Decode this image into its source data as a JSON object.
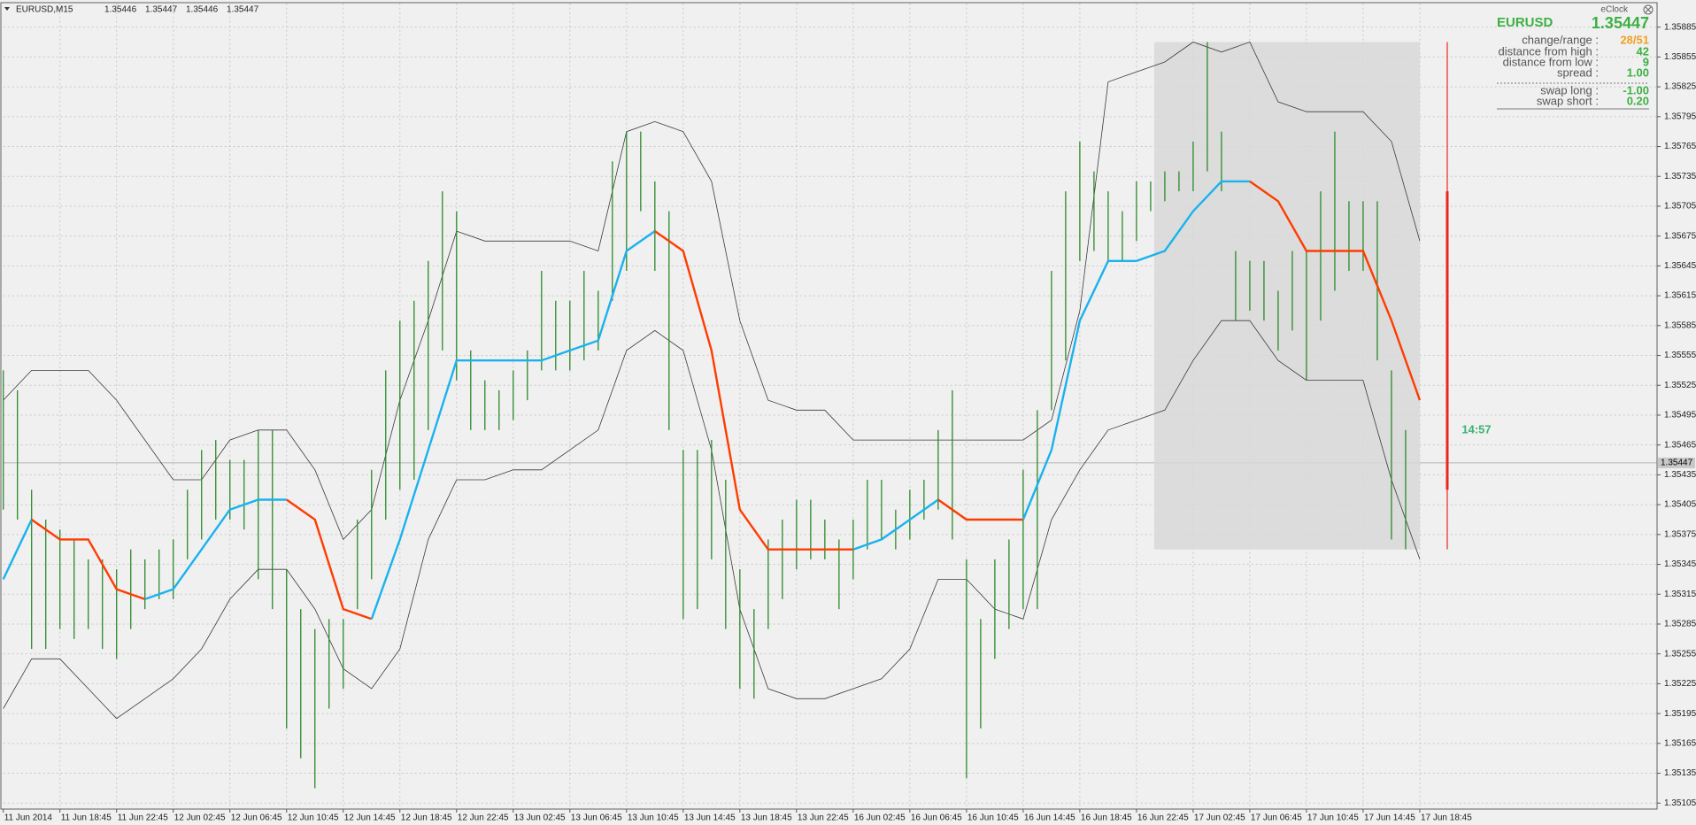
{
  "chart_data": {
    "type": "hilo",
    "header": {
      "symbol": "EURUSD,M15",
      "ohlc": [
        1.35446,
        1.35447,
        1.35446,
        1.35447
      ]
    },
    "indicator_name": "eClock",
    "timer": "14:57",
    "current_price": 1.35447,
    "info": {
      "symbol": "EURUSD",
      "rows": [
        {
          "label": "change/range :",
          "value": "28/51",
          "color": "#f0a020"
        },
        {
          "label": "distance from high :",
          "value": 42,
          "color": "#3cb043"
        },
        {
          "label": "distance from low :",
          "value": 9,
          "color": "#3cb043"
        },
        {
          "label": "spread :",
          "value": "1.00",
          "color": "#3cb043"
        },
        {
          "label": "swap long :",
          "value": "-1.00",
          "color": "#3cb043"
        },
        {
          "label": "swap short :",
          "value": "0.20",
          "color": "#3cb043"
        }
      ]
    },
    "xlim": [
      0,
      467
    ],
    "ylim": [
      1.35099,
      1.35909
    ],
    "grid": true,
    "yticks": [
      1.35885,
      1.35855,
      1.35825,
      1.35795,
      1.35765,
      1.35735,
      1.35705,
      1.35675,
      1.35645,
      1.35615,
      1.35585,
      1.35555,
      1.35525,
      1.35495,
      1.35465,
      1.35435,
      1.35405,
      1.35375,
      1.35345,
      1.35315,
      1.35285,
      1.35255,
      1.35225,
      1.35195,
      1.35165,
      1.35135,
      1.35105
    ],
    "xticks": [
      {
        "value": 0,
        "label": "11 Jun 2014"
      },
      {
        "value": 16,
        "label": "11 Jun 18:45"
      },
      {
        "value": 32,
        "label": "11 Jun 22:45"
      },
      {
        "value": 48,
        "label": "12 Jun 02:45"
      },
      {
        "value": 64,
        "label": "12 Jun 06:45"
      },
      {
        "value": 80,
        "label": "12 Jun 10:45"
      },
      {
        "value": 96,
        "label": "12 Jun 14:45"
      },
      {
        "value": 112,
        "label": "12 Jun 18:45"
      },
      {
        "value": 128,
        "label": "12 Jun 22:45"
      },
      {
        "value": 144,
        "label": "13 Jun 02:45"
      },
      {
        "value": 160,
        "label": "13 Jun 06:45"
      },
      {
        "value": 176,
        "label": "13 Jun 10:45"
      },
      {
        "value": 192,
        "label": "13 Jun 14:45"
      },
      {
        "value": 208,
        "label": "13 Jun 18:45"
      },
      {
        "value": 224,
        "label": "13 Jun 22:45"
      },
      {
        "value": 240,
        "label": "16 Jun 02:45"
      },
      {
        "value": 256,
        "label": "16 Jun 06:45"
      },
      {
        "value": 272,
        "label": "16 Jun 10:45"
      },
      {
        "value": 288,
        "label": "16 Jun 14:45"
      },
      {
        "value": 304,
        "label": "16 Jun 18:45"
      },
      {
        "value": 320,
        "label": "16 Jun 22:45"
      },
      {
        "value": 336,
        "label": "17 Jun 02:45"
      },
      {
        "value": 352,
        "label": "17 Jun 06:45"
      },
      {
        "value": 368,
        "label": "17 Jun 10:45"
      },
      {
        "value": 384,
        "label": "17 Jun 14:45"
      },
      {
        "value": 400,
        "label": "17 Jun 18:45"
      }
    ],
    "bars": {
      "color": "#2a8a2a",
      "x": [
        0,
        4,
        8,
        12,
        16,
        20,
        24,
        28,
        32,
        36,
        40,
        44,
        48,
        52,
        56,
        60,
        64,
        68,
        72,
        76,
        80,
        84,
        88,
        92,
        96,
        100,
        104,
        108,
        112,
        116,
        120,
        124,
        128,
        132,
        136,
        140,
        144,
        148,
        152,
        156,
        160,
        164,
        168,
        172,
        176,
        180,
        184,
        188,
        192,
        196,
        200,
        204,
        208,
        212,
        216,
        220,
        224,
        228,
        232,
        236,
        240,
        244,
        248,
        252,
        256,
        260,
        264,
        268,
        272,
        276,
        280,
        284,
        288,
        292,
        296,
        300,
        304,
        308,
        312,
        316,
        320,
        324,
        328,
        332,
        336,
        340,
        344,
        348,
        352,
        356,
        360,
        364,
        368,
        372,
        376,
        380,
        384,
        388,
        392,
        396
      ],
      "high": [
        1.3554,
        1.3552,
        1.3542,
        1.3539,
        1.3538,
        1.3537,
        1.3535,
        1.3535,
        1.3534,
        1.3536,
        1.3535,
        1.3536,
        1.3537,
        1.3542,
        1.3546,
        1.3547,
        1.3545,
        1.3545,
        1.3548,
        1.3548,
        1.3534,
        1.353,
        1.3528,
        1.3529,
        1.3529,
        1.3539,
        1.3544,
        1.3554,
        1.3559,
        1.3561,
        1.3565,
        1.3572,
        1.357,
        1.3556,
        1.3553,
        1.3552,
        1.3554,
        1.3556,
        1.3564,
        1.3561,
        1.3561,
        1.3564,
        1.3562,
        1.3575,
        1.3578,
        1.3578,
        1.3573,
        1.357,
        1.3546,
        1.3546,
        1.3547,
        1.3543,
        1.3534,
        1.353,
        1.3537,
        1.3539,
        1.3541,
        1.3541,
        1.3539,
        1.3537,
        1.3539,
        1.3543,
        1.3543,
        1.354,
        1.3542,
        1.3543,
        1.3548,
        1.3552,
        1.3535,
        1.3529,
        1.3535,
        1.3537,
        1.3544,
        1.355,
        1.3564,
        1.3572,
        1.3577,
        1.3574,
        1.3572,
        1.357,
        1.3573,
        1.3573,
        1.3574,
        1.3574,
        1.3577,
        1.3587,
        1.3578,
        1.3566,
        1.3565,
        1.3565,
        1.3562,
        1.3566,
        1.3566,
        1.3572,
        1.3578,
        1.3571,
        1.3571,
        1.3571,
        1.3554,
        1.3548
      ],
      "low": [
        1.354,
        1.3539,
        1.3526,
        1.3526,
        1.3528,
        1.3527,
        1.3528,
        1.3526,
        1.3525,
        1.3528,
        1.353,
        1.3531,
        1.3531,
        1.3535,
        1.3537,
        1.3539,
        1.3539,
        1.3538,
        1.3533,
        1.353,
        1.3518,
        1.3515,
        1.3512,
        1.352,
        1.3522,
        1.353,
        1.3533,
        1.3539,
        1.3542,
        1.3543,
        1.3548,
        1.3556,
        1.3553,
        1.3548,
        1.3548,
        1.3548,
        1.3549,
        1.3551,
        1.3554,
        1.3554,
        1.3554,
        1.3555,
        1.3556,
        1.3561,
        1.3564,
        1.357,
        1.3564,
        1.3548,
        1.3529,
        1.353,
        1.3535,
        1.3528,
        1.3522,
        1.3521,
        1.3528,
        1.3531,
        1.3534,
        1.3535,
        1.3535,
        1.353,
        1.3533,
        1.3536,
        1.3537,
        1.3536,
        1.3537,
        1.3539,
        1.354,
        1.3537,
        1.3513,
        1.3518,
        1.3525,
        1.3528,
        1.353,
        1.353,
        1.355,
        1.3555,
        1.3565,
        1.3566,
        1.3565,
        1.3565,
        1.3567,
        1.357,
        1.3571,
        1.3572,
        1.3572,
        1.3574,
        1.3572,
        1.3559,
        1.356,
        1.3559,
        1.3556,
        1.3558,
        1.3553,
        1.3559,
        1.3562,
        1.3564,
        1.3564,
        1.3555,
        1.3537,
        1.3536
      ]
    },
    "bands": {
      "color": "#3a3a3a",
      "up_color": "#1ab2ee",
      "down_color": "#ff3c00",
      "x": [
        0,
        8,
        16,
        24,
        32,
        40,
        48,
        56,
        64,
        72,
        80,
        88,
        96,
        104,
        112,
        120,
        128,
        136,
        144,
        152,
        160,
        168,
        176,
        184,
        192,
        200,
        208,
        216,
        224,
        232,
        240,
        248,
        256,
        264,
        272,
        280,
        288,
        296,
        304,
        312,
        320,
        328,
        336,
        344,
        352,
        360,
        368,
        376,
        384,
        392,
        400
      ],
      "upper": [
        1.3551,
        1.3554,
        1.3554,
        1.3554,
        1.3551,
        1.3547,
        1.3543,
        1.3543,
        1.3547,
        1.3548,
        1.3548,
        1.3544,
        1.3537,
        1.354,
        1.3551,
        1.3559,
        1.3568,
        1.3567,
        1.3567,
        1.3567,
        1.3567,
        1.3566,
        1.3578,
        1.3579,
        1.3578,
        1.3573,
        1.3559,
        1.3551,
        1.355,
        1.355,
        1.3547,
        1.3547,
        1.3547,
        1.3547,
        1.3547,
        1.3547,
        1.3547,
        1.3549,
        1.356,
        1.3583,
        1.3584,
        1.3585,
        1.3587,
        1.3586,
        1.3587,
        1.3581,
        1.358,
        1.358,
        1.358,
        1.3577,
        1.3567
      ],
      "lower": [
        1.352,
        1.3525,
        1.3525,
        1.3522,
        1.3519,
        1.3521,
        1.3523,
        1.3526,
        1.3531,
        1.3534,
        1.3534,
        1.353,
        1.3524,
        1.3522,
        1.3526,
        1.3537,
        1.3543,
        1.3543,
        1.3544,
        1.3544,
        1.3546,
        1.3548,
        1.3556,
        1.3558,
        1.3556,
        1.3546,
        1.353,
        1.3522,
        1.3521,
        1.3521,
        1.3522,
        1.3523,
        1.3526,
        1.3533,
        1.3533,
        1.353,
        1.3529,
        1.3539,
        1.3544,
        1.3548,
        1.3549,
        1.355,
        1.3555,
        1.3559,
        1.3559,
        1.3555,
        1.3553,
        1.3553,
        1.3553,
        1.3543,
        1.3535
      ],
      "middle": [
        1.3533,
        1.3539,
        1.3537,
        1.3537,
        1.3532,
        1.3531,
        1.3532,
        1.3536,
        1.354,
        1.3541,
        1.3541,
        1.3539,
        1.353,
        1.3529,
        1.3537,
        1.3546,
        1.3555,
        1.3555,
        1.3555,
        1.3555,
        1.3556,
        1.3557,
        1.3566,
        1.3568,
        1.3566,
        1.3556,
        1.354,
        1.3536,
        1.3536,
        1.3536,
        1.3536,
        1.3537,
        1.3539,
        1.3541,
        1.3539,
        1.3539,
        1.3539,
        1.3546,
        1.3559,
        1.3565,
        1.3565,
        1.3566,
        1.357,
        1.3573,
        1.3573,
        1.3571,
        1.3566,
        1.3566,
        1.3566,
        1.3559,
        1.3551
      ]
    },
    "session_range": {
      "start": 325,
      "end": 400,
      "high": 1.3587,
      "low": 1.3536,
      "color": "#d8d8d8"
    },
    "day_range": {
      "high": 1.3587,
      "low": 1.3536,
      "body_high": 1.3572,
      "body_low": 1.3542,
      "color": "#e8281e"
    }
  }
}
